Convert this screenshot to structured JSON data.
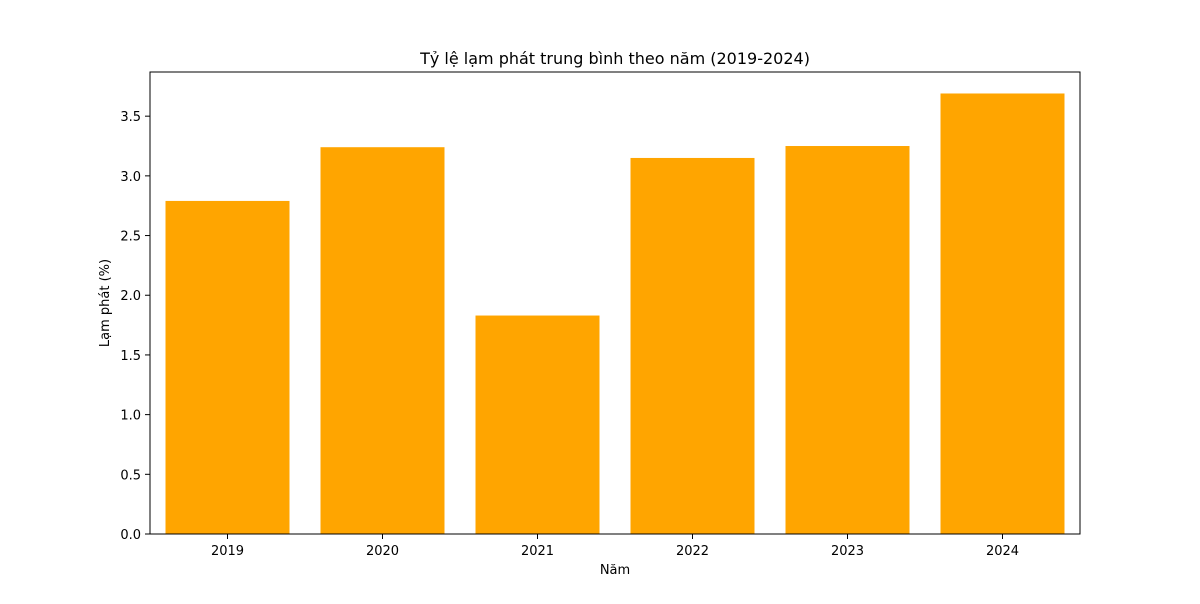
{
  "chart_data": {
    "type": "bar",
    "title": "Tỷ lệ lạm phát trung bình theo năm (2019-2024)",
    "xlabel": "Năm",
    "ylabel": "Lạm phát (%)",
    "categories": [
      "2019",
      "2020",
      "2021",
      "2022",
      "2023",
      "2024"
    ],
    "values": [
      2.79,
      3.24,
      1.83,
      3.15,
      3.25,
      3.69
    ],
    "ylim": [
      0,
      3.87
    ],
    "yticks": [
      "0.0",
      "0.5",
      "1.0",
      "1.5",
      "2.0",
      "2.5",
      "3.0",
      "3.5"
    ],
    "bar_color": "#FFA500",
    "grid": false,
    "legend": "none"
  }
}
